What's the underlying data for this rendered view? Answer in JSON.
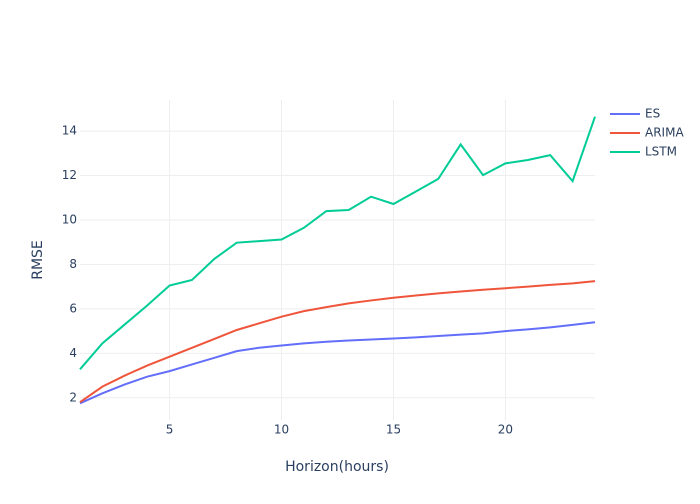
{
  "chart_data": {
    "type": "line",
    "x_label": "Horizon(hours)",
    "y_label": "RMSE",
    "x": [
      1,
      2,
      3,
      4,
      5,
      6,
      7,
      8,
      9,
      10,
      11,
      12,
      13,
      14,
      15,
      16,
      17,
      18,
      19,
      20,
      21,
      22,
      23,
      24
    ],
    "series": [
      {
        "name": "ES",
        "color": "#636efa",
        "values": [
          1.75,
          2.2,
          2.6,
          2.95,
          3.2,
          3.5,
          3.8,
          4.1,
          4.25,
          4.35,
          4.45,
          4.52,
          4.58,
          4.62,
          4.67,
          4.72,
          4.78,
          4.84,
          4.9,
          5.0,
          5.08,
          5.17,
          5.28,
          5.4
        ]
      },
      {
        "name": "ARIMA",
        "color": "#EF553B",
        "values": [
          1.8,
          2.5,
          3.0,
          3.45,
          3.85,
          4.25,
          4.65,
          5.05,
          5.35,
          5.65,
          5.9,
          6.08,
          6.25,
          6.38,
          6.5,
          6.6,
          6.7,
          6.78,
          6.86,
          6.93,
          7.0,
          7.08,
          7.15,
          7.25
        ]
      },
      {
        "name": "LSTM",
        "color": "#00cc96",
        "values": [
          3.28,
          4.45,
          5.3,
          6.15,
          7.05,
          7.3,
          8.25,
          8.98,
          9.05,
          9.12,
          9.65,
          10.4,
          10.45,
          11.05,
          10.72,
          11.28,
          11.85,
          13.4,
          12.02,
          12.55,
          12.7,
          12.92,
          11.75,
          14.65
        ]
      }
    ],
    "xlim": [
      1,
      24
    ],
    "xticks": [
      5,
      10,
      15,
      20
    ],
    "ylim": [
      1.0,
      15.4
    ],
    "yticks": [
      2,
      4,
      6,
      8,
      10,
      12,
      14
    ],
    "grid": true,
    "legend": "top-right"
  }
}
